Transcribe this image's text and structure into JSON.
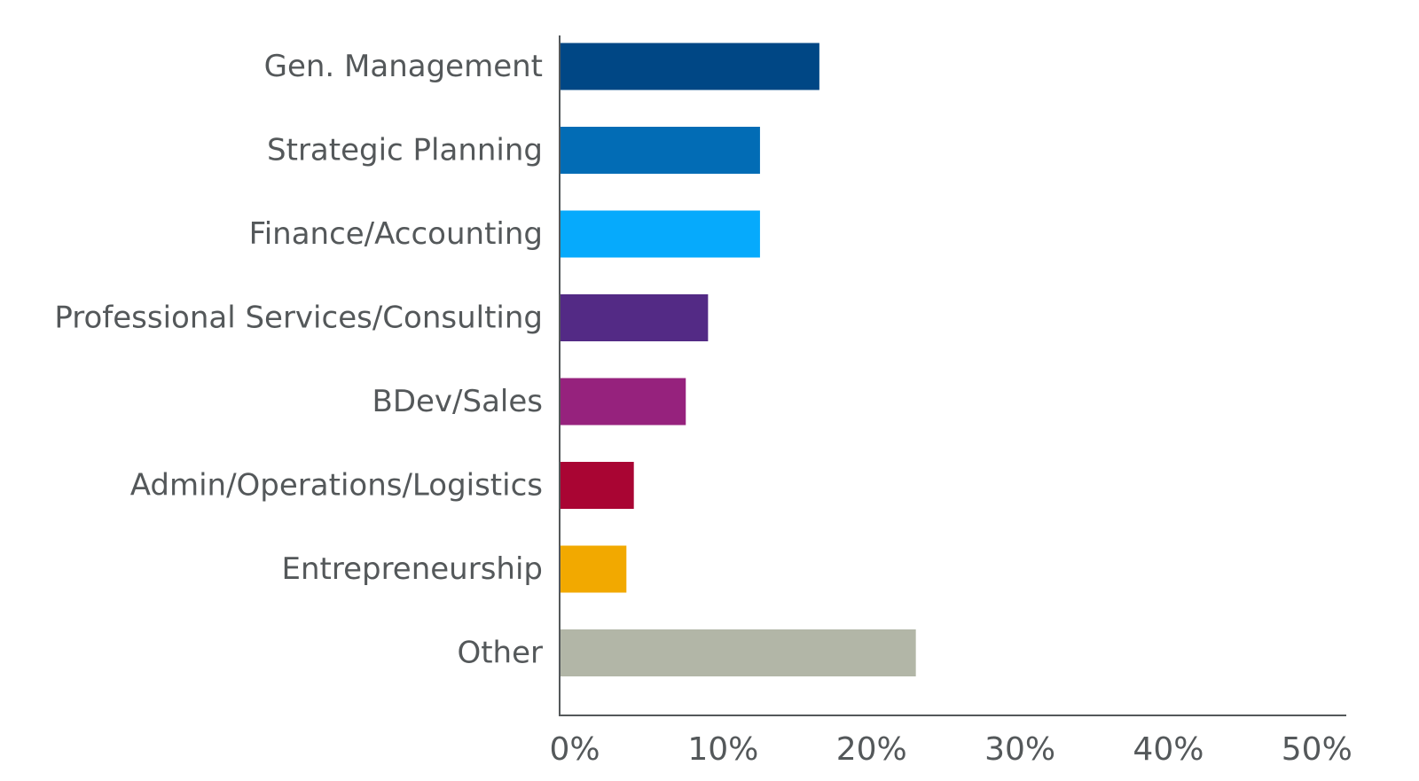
{
  "chart_data": {
    "type": "bar",
    "orientation": "horizontal",
    "categories": [
      "Gen. Management",
      "Strategic Planning",
      "Finance/Accounting",
      "Professional Services/Consulting",
      "BDev/Sales",
      "Admin/Operations/Logistics",
      "Entrepreneurship",
      "Other"
    ],
    "values": [
      17.5,
      13.5,
      13.5,
      10,
      8.5,
      5,
      4.5,
      24
    ],
    "colors": [
      "#004785",
      "#026cb5",
      "#06aafc",
      "#532a85",
      "#96227d",
      "#a90533",
      "#f2a900",
      "#b2b6a7"
    ],
    "xticks": [
      "0%",
      "10%",
      "20%",
      "30%",
      "40%",
      "50%"
    ],
    "xlim": [
      0,
      53
    ],
    "title": "",
    "xlabel": "",
    "ylabel": "",
    "grid": false,
    "legend": "none"
  }
}
